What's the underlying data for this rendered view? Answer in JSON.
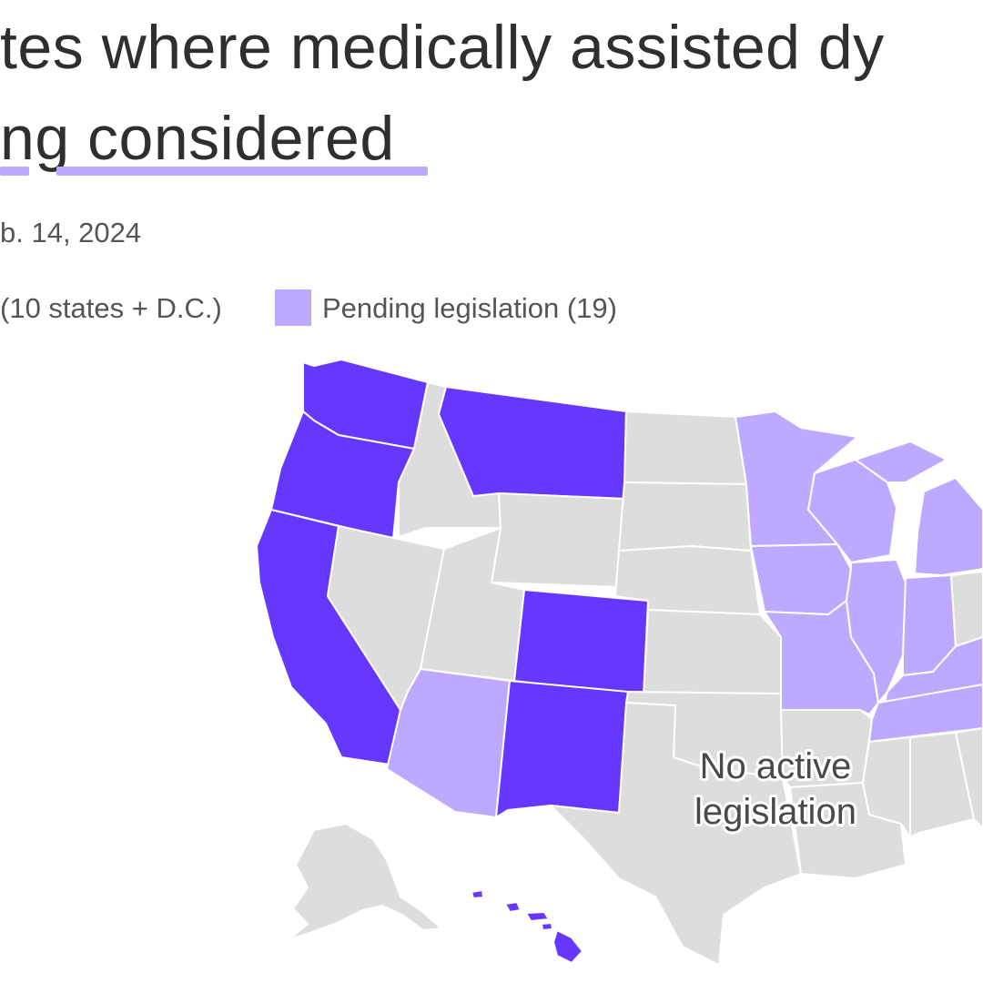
{
  "title": {
    "line1": "tes where medically assisted dy",
    "line2": "ng considered"
  },
  "date": "b. 14, 2024",
  "legend": {
    "legal_label": "(10 states + D.C.)",
    "pending_label": "Pending legislation (19)"
  },
  "map_label": {
    "line1": "No active",
    "line2": "legislation"
  },
  "colors": {
    "legal": "#6638ff",
    "pending": "#bda9ff",
    "none": "#dddddd",
    "underline": "#bda9ff"
  },
  "states": {
    "legal": [
      "WA",
      "OR",
      "CA",
      "MT",
      "CO",
      "NM",
      "HI"
    ],
    "pending": [
      "AZ",
      "MN",
      "WI",
      "IA",
      "IL",
      "MO",
      "MI",
      "IN",
      "KY",
      "TN"
    ],
    "none": [
      "AK",
      "ID",
      "NV",
      "UT",
      "WY",
      "ND",
      "SD",
      "NE",
      "KS",
      "OK",
      "TX",
      "AR",
      "LA",
      "MS",
      "AL",
      "OH",
      "GA"
    ]
  }
}
